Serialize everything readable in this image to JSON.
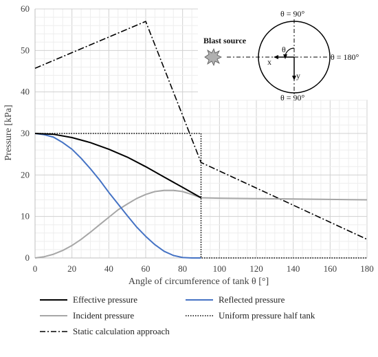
{
  "chart_data": {
    "type": "line",
    "xlabel": "Angle of circumference of tank θ [°]",
    "ylabel": "Pressure [kPa]",
    "xlim": [
      0,
      180
    ],
    "ylim": [
      0,
      60
    ],
    "xticks": [
      0,
      20,
      40,
      60,
      80,
      100,
      120,
      140,
      160,
      180
    ],
    "yticks": [
      0,
      10,
      20,
      30,
      40,
      50,
      60
    ],
    "grid": "major and minor, light gray",
    "legend_position": "bottom",
    "series": [
      {
        "name": "Effective pressure",
        "color": "#000000",
        "style": "solid",
        "x": [
          0,
          10,
          20,
          30,
          40,
          50,
          60,
          70,
          80,
          90
        ],
        "y": [
          30,
          29.8,
          29,
          27.8,
          26.2,
          24.3,
          22.0,
          19.5,
          17.0,
          14.5
        ]
      },
      {
        "name": "Reflected pressure",
        "color": "#4472c4",
        "style": "solid",
        "x": [
          0,
          5,
          10,
          15,
          20,
          25,
          30,
          35,
          40,
          45,
          50,
          55,
          60,
          65,
          70,
          75,
          80,
          85,
          90
        ],
        "y": [
          30,
          29.7,
          29.1,
          27.8,
          26.2,
          24.0,
          21.5,
          18.8,
          15.8,
          13.0,
          10.2,
          7.5,
          5.2,
          3.2,
          1.6,
          0.6,
          0.1,
          0,
          0
        ]
      },
      {
        "name": "Incident pressure",
        "color": "#a6a6a6",
        "style": "solid",
        "x": [
          0,
          5,
          10,
          15,
          20,
          25,
          30,
          35,
          40,
          45,
          50,
          55,
          60,
          65,
          70,
          75,
          80,
          85,
          90,
          100,
          120,
          140,
          160,
          180
        ],
        "y": [
          0,
          0.3,
          0.9,
          1.8,
          3.0,
          4.5,
          6.2,
          8.0,
          9.8,
          11.6,
          13.0,
          14.3,
          15.3,
          16.0,
          16.3,
          16.3,
          16.0,
          15.3,
          14.5,
          14.4,
          14.3,
          14.2,
          14.1,
          14.0
        ]
      },
      {
        "name": "Uniform pressure half tank",
        "color": "#000000",
        "style": "dotted",
        "x": [
          0,
          90,
          90,
          180
        ],
        "y": [
          30,
          30,
          0,
          0
        ]
      },
      {
        "name": "Static calculation approach",
        "color": "#000000",
        "style": "dashdot",
        "x": [
          0,
          60,
          90,
          180
        ],
        "y": [
          45.7,
          57,
          23,
          4.5
        ]
      }
    ],
    "legend": [
      "Effective pressure",
      "Reflected pressure",
      "Incident pressure",
      "Uniform pressure half tank",
      "Static calculation approach"
    ],
    "inset": {
      "top_label": "θ = 90°",
      "bottom_label": "θ = 90°",
      "right_label": "θ = 180°",
      "source_label": "Blast source",
      "theta_label": "θ",
      "x_label": "x",
      "y_label": "y"
    }
  }
}
